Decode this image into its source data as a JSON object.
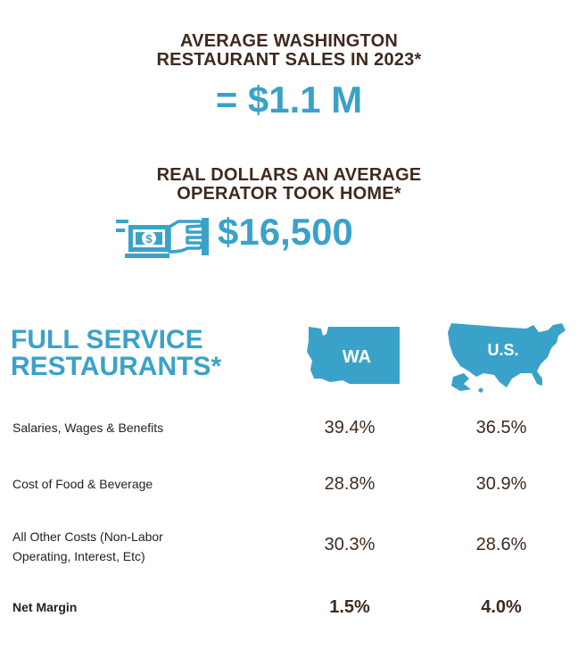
{
  "header": {
    "avg_sales_line1": "AVERAGE WASHINGTON",
    "avg_sales_line2": "RESTAURANT SALES IN 2023*",
    "avg_sales_value": "= $1.1 M",
    "take_home_line1": "REAL DOLLARS AN AVERAGE",
    "take_home_line2": "OPERATOR TOOK HOME*",
    "take_home_value": "$16,500"
  },
  "icons": {
    "money": "money-hand-icon",
    "wa_map": "washington-map-icon",
    "us_map": "us-map-icon"
  },
  "section": {
    "title_line1": "FULL SERVICE",
    "title_line2": "RESTAURANTS*",
    "col_wa": "WA",
    "col_us": "U.S."
  },
  "rows": [
    {
      "label_line1": "Salaries, Wages & Benefits",
      "label_line2": "",
      "wa": "39.4%",
      "us": "36.5%"
    },
    {
      "label_line1": "Cost of Food & Beverage",
      "label_line2": "",
      "wa": "28.8%",
      "us": "30.9%"
    },
    {
      "label_line1": "All Other Costs (Non-Labor",
      "label_line2": "Operating, Interest, Etc)",
      "wa": "30.3%",
      "us": "28.6%"
    },
    {
      "label_line1": "Net Margin",
      "label_line2": "",
      "wa": "1.5%",
      "us": "4.0%"
    }
  ],
  "colors": {
    "brown": "#3f2a1e",
    "blue": "#3aa2c9"
  }
}
